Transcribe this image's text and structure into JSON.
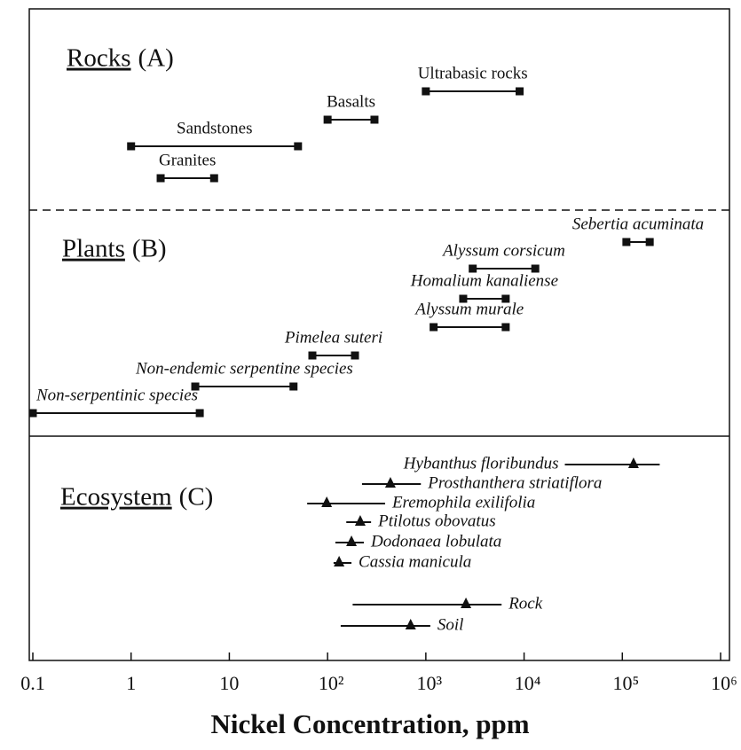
{
  "chart_data": {
    "type": "range",
    "xlabel": "Nickel Concentration, ppm",
    "xscale": "log",
    "xlim": [
      0.1,
      1000000
    ],
    "xticks": [
      0.1,
      1,
      10,
      {
        "value": 100,
        "label": "10²"
      },
      {
        "value": 1000,
        "label": "10³"
      },
      {
        "value": 10000,
        "label": "10⁴"
      },
      {
        "value": 100000,
        "label": "10⁵"
      },
      {
        "value": 1000000,
        "label": "10⁶"
      }
    ],
    "panels": [
      {
        "name": "Rocks",
        "tag": "(A)",
        "items": [
          {
            "label": "Ultrabasic rocks",
            "low": 1000,
            "high": 9000
          },
          {
            "label": "Basalts",
            "low": 100,
            "high": 300
          },
          {
            "label": "Sandstones",
            "low": 1,
            "high": 50
          },
          {
            "label": "Granites",
            "low": 2,
            "high": 7
          }
        ]
      },
      {
        "name": "Plants",
        "tag": "(B)",
        "items": [
          {
            "label": "Sebertia acuminata",
            "low": 110000,
            "high": 190000
          },
          {
            "label": "Alyssum corsicum",
            "low": 3000,
            "high": 13000
          },
          {
            "label": "Homalium kanaliense",
            "low": 2400,
            "high": 6500
          },
          {
            "label": "Alyssum murale",
            "low": 1200,
            "high": 6500
          },
          {
            "label": "Pimelea suteri",
            "low": 70,
            "high": 190
          },
          {
            "label": "Non-endemic serpentine species",
            "low": 4.5,
            "high": 45
          },
          {
            "label": "Non-serpentinic species",
            "low": 0.1,
            "high": 5
          }
        ]
      },
      {
        "name": "Ecosystem",
        "tag": "(C)",
        "items": [
          {
            "label": "Hybanthus floribundus",
            "low": 26000,
            "value": 130000,
            "high": 240000
          },
          {
            "label": "Prosthanthera striatiflora",
            "low": 224,
            "value": 436,
            "high": 890
          },
          {
            "label": "Eremophila exilifolia",
            "low": 62,
            "value": 98,
            "high": 385
          },
          {
            "label": "Ptilotus obovatus",
            "low": 155,
            "value": 215,
            "high": 277
          },
          {
            "label": "Dodonaea lobulata",
            "low": 120,
            "value": 175,
            "high": 234
          },
          {
            "label": "Cassia manicula",
            "low": 115,
            "value": 131,
            "high": 175
          },
          {
            "label": "Rock",
            "low": 180,
            "value": 2560,
            "high": 5900
          },
          {
            "label": "Soil",
            "low": 136,
            "value": 700,
            "high": 1110
          }
        ]
      }
    ]
  }
}
